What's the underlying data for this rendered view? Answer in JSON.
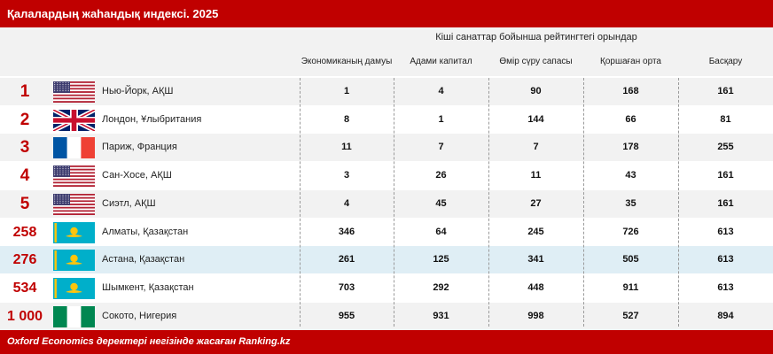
{
  "chart_data": {
    "type": "table",
    "title": "Қалалардың жаһандық индексі. 2025",
    "group_header": "Кіші санаттар бойынша рейтингтегі орындар",
    "columns": [
      "Экономиканың дамуы",
      "Адами капитал",
      "Өмір сүру сапасы",
      "Қоршаған орта",
      "Басқару"
    ],
    "rows": [
      {
        "rank": "1",
        "city": "Нью-Йорк, АҚШ",
        "flag": "us-flag-icon",
        "values": [
          1,
          4,
          90,
          168,
          161
        ]
      },
      {
        "rank": "2",
        "city": "Лондон, Ұлыбритания",
        "flag": "uk-flag-icon",
        "values": [
          8,
          1,
          144,
          66,
          81
        ]
      },
      {
        "rank": "3",
        "city": "Париж, Франция",
        "flag": "france-flag-icon",
        "values": [
          11,
          7,
          7,
          178,
          255
        ]
      },
      {
        "rank": "4",
        "city": "Сан-Хосе, АҚШ",
        "flag": "us-flag-icon",
        "values": [
          3,
          26,
          11,
          43,
          161
        ]
      },
      {
        "rank": "5",
        "city": "Сиэтл, АҚШ",
        "flag": "us-flag-icon",
        "values": [
          4,
          45,
          27,
          35,
          161
        ]
      },
      {
        "rank": "258",
        "city": "Алматы, Қазақстан",
        "flag": "kazakhstan-flag-icon",
        "values": [
          346,
          64,
          245,
          726,
          613
        ]
      },
      {
        "rank": "276",
        "city": "Астана, Қазақстан",
        "flag": "kazakhstan-flag-icon",
        "values": [
          261,
          125,
          341,
          505,
          613
        ],
        "highlighted": true
      },
      {
        "rank": "534",
        "city": "Шымкент, Қазақстан",
        "flag": "kazakhstan-flag-icon",
        "values": [
          703,
          292,
          448,
          911,
          613
        ]
      },
      {
        "rank": "1 000",
        "city": "Сокото, Нигерия",
        "flag": "nigeria-flag-icon",
        "values": [
          955,
          931,
          998,
          527,
          894
        ]
      }
    ],
    "source": "Oxford Economics деректері негізінде жасаған Ranking.kz"
  },
  "colors": {
    "accent": "#c00000",
    "header_bg": "#f2f2f2",
    "highlight_row": "#dfeef5"
  }
}
